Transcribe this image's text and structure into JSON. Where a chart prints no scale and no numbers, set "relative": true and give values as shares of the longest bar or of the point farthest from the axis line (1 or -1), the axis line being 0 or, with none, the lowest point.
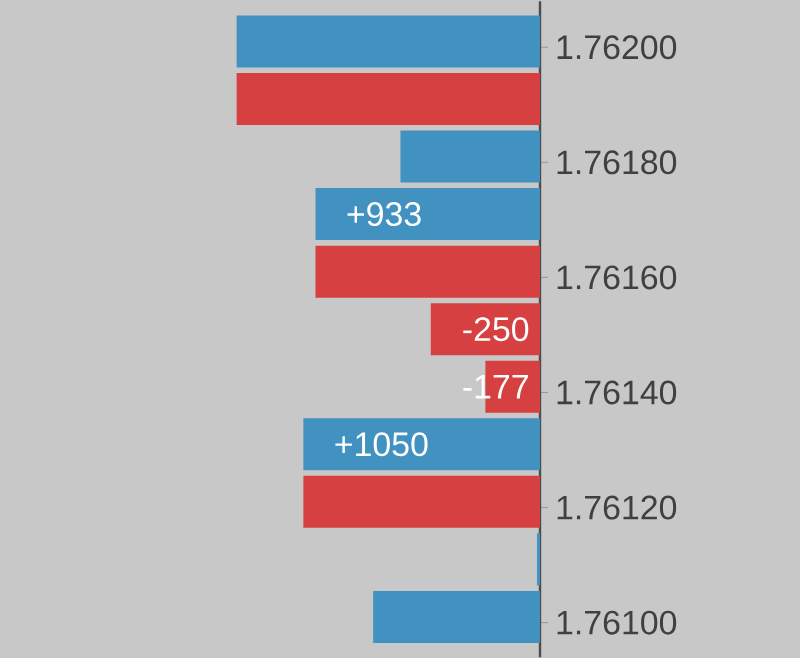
{
  "chart_data": {
    "type": "bar",
    "orientation": "horizontal",
    "relative": true,
    "x": [
      1.76201,
      1.76191,
      1.76181,
      1.76171,
      1.76161,
      1.76151,
      1.76141,
      1.76131,
      1.76121,
      1.76111,
      1.76101
    ],
    "ylim": [
      1.76094,
      1.76208
    ],
    "yticks": [
      {
        "value": 1.762,
        "label": "1.76200"
      },
      {
        "value": 1.7618,
        "label": "1.76180"
      },
      {
        "value": 1.7616,
        "label": "1.76160"
      },
      {
        "value": 1.7614,
        "label": "1.76140"
      },
      {
        "value": 1.7612,
        "label": "1.76120"
      },
      {
        "value": 1.761,
        "label": "1.76100"
      }
    ],
    "series": [
      {
        "color": "#4192c0",
        "values": [
          1,
          null,
          0.46,
          0.74,
          null,
          null,
          null,
          0.78,
          null,
          0.01,
          0.55
        ]
      },
      {
        "color": "#d64040",
        "values": [
          null,
          1,
          null,
          null,
          0.74,
          0.36,
          0.18,
          null,
          0.78,
          null,
          null
        ]
      }
    ],
    "annotations": [
      {
        "text": "+933",
        "x": 0.74,
        "y": 1.76171
      },
      {
        "text": "-250",
        "x": 0.36,
        "y": 1.76151
      },
      {
        "text": "-177",
        "x": 0.18,
        "y": 1.76141
      },
      {
        "text": "+1050",
        "x": 0.78,
        "y": 1.76131
      }
    ]
  }
}
